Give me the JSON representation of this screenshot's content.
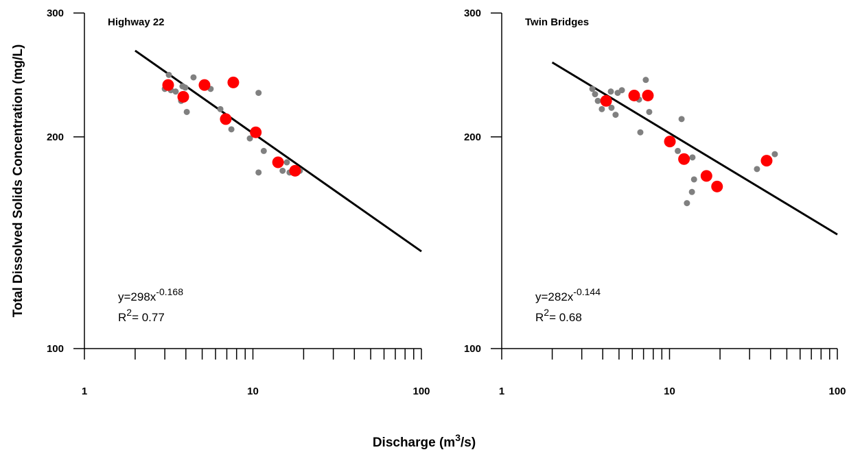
{
  "y_label": "Total Dissolved Solids Concentration (mg/L)",
  "x_label": {
    "text": "Discharge (m",
    "sup": "3",
    "tail": "/s)"
  },
  "chart_data": [
    {
      "type": "scatter",
      "title": "Highway 22",
      "xscale": "log",
      "yscale": "log",
      "xlim": [
        1,
        100
      ],
      "ylim": [
        100,
        300
      ],
      "xticks": [
        1,
        10,
        100
      ],
      "yticks": [
        100,
        200,
        300
      ],
      "xminor_ticks": [
        2,
        3,
        4,
        5,
        6,
        7,
        8,
        9,
        20,
        30,
        40,
        50,
        60,
        70,
        80,
        90
      ],
      "series": [
        {
          "color": "#808080",
          "x": [
            3.0,
            3.17,
            3.26,
            3.48,
            3.82,
            3.97,
            3.75,
            4.05,
            4.44,
            5.61,
            6.41,
            7.45,
            9.59,
            10.8,
            11.6,
            10.8,
            15.0,
            15.9,
            16.5,
            19.0
          ],
          "values": [
            234,
            245,
            233,
            232,
            236,
            235,
            225,
            217,
            243,
            234,
            219,
            205,
            199,
            231,
            191,
            178,
            179,
            184,
            178,
            179
          ]
        },
        {
          "color": "#ff0000",
          "x": [
            3.14,
            3.86,
            5.16,
            7.65,
            6.9,
            10.4,
            14.1,
            17.8
          ],
          "values": [
            237,
            228,
            237,
            239,
            212,
            203,
            184,
            179
          ]
        }
      ],
      "fit": {
        "coefficient": {
          "value": 298,
          "label": "y=298x"
        },
        "exponent": -0.168,
        "r_label": "R",
        "r_sup": "2",
        "r_squared": {
          "value": 0.77,
          "label": "= 0.77"
        },
        "x_range": [
          2,
          100
        ],
        "color": "#000000"
      }
    },
    {
      "type": "scatter",
      "title": "Twin Bridges",
      "xscale": "log",
      "yscale": "log",
      "xlim": [
        1,
        100
      ],
      "ylim": [
        100,
        300
      ],
      "xticks": [
        1,
        10,
        100
      ],
      "yticks": [
        100,
        200,
        300
      ],
      "xminor_ticks": [
        2,
        3,
        4,
        5,
        6,
        7,
        8,
        9,
        20,
        30,
        40,
        50,
        60,
        70,
        80,
        90
      ],
      "series": [
        {
          "color": "#808080",
          "x": [
            3.47,
            3.6,
            3.74,
            3.95,
            4.19,
            4.47,
            4.51,
            4.77,
            4.91,
            5.2,
            6.58,
            7.22,
            7.57,
            6.7,
            11.2,
            11.8,
            13.7,
            12.7,
            14.0,
            13.6,
            33.2,
            42.4
          ],
          "values": [
            234,
            230,
            225,
            219,
            225,
            232,
            220,
            215,
            231,
            233,
            226,
            241,
            217,
            203,
            191,
            212,
            187,
            161,
            174,
            167,
            180,
            189
          ]
        },
        {
          "color": "#ff0000",
          "x": [
            4.19,
            6.16,
            7.43,
            10.05,
            12.2,
            16.6,
            19.2,
            37.9
          ],
          "values": [
            225,
            229,
            229,
            197,
            186,
            176,
            170,
            185
          ]
        }
      ],
      "fit": {
        "coefficient": {
          "value": 282,
          "label": "y=282x"
        },
        "exponent": -0.144,
        "r_label": "R",
        "r_sup": "2",
        "r_squared": {
          "value": 0.68,
          "label": "= 0.68"
        },
        "x_range": [
          2,
          100
        ],
        "color": "#000000"
      }
    }
  ]
}
